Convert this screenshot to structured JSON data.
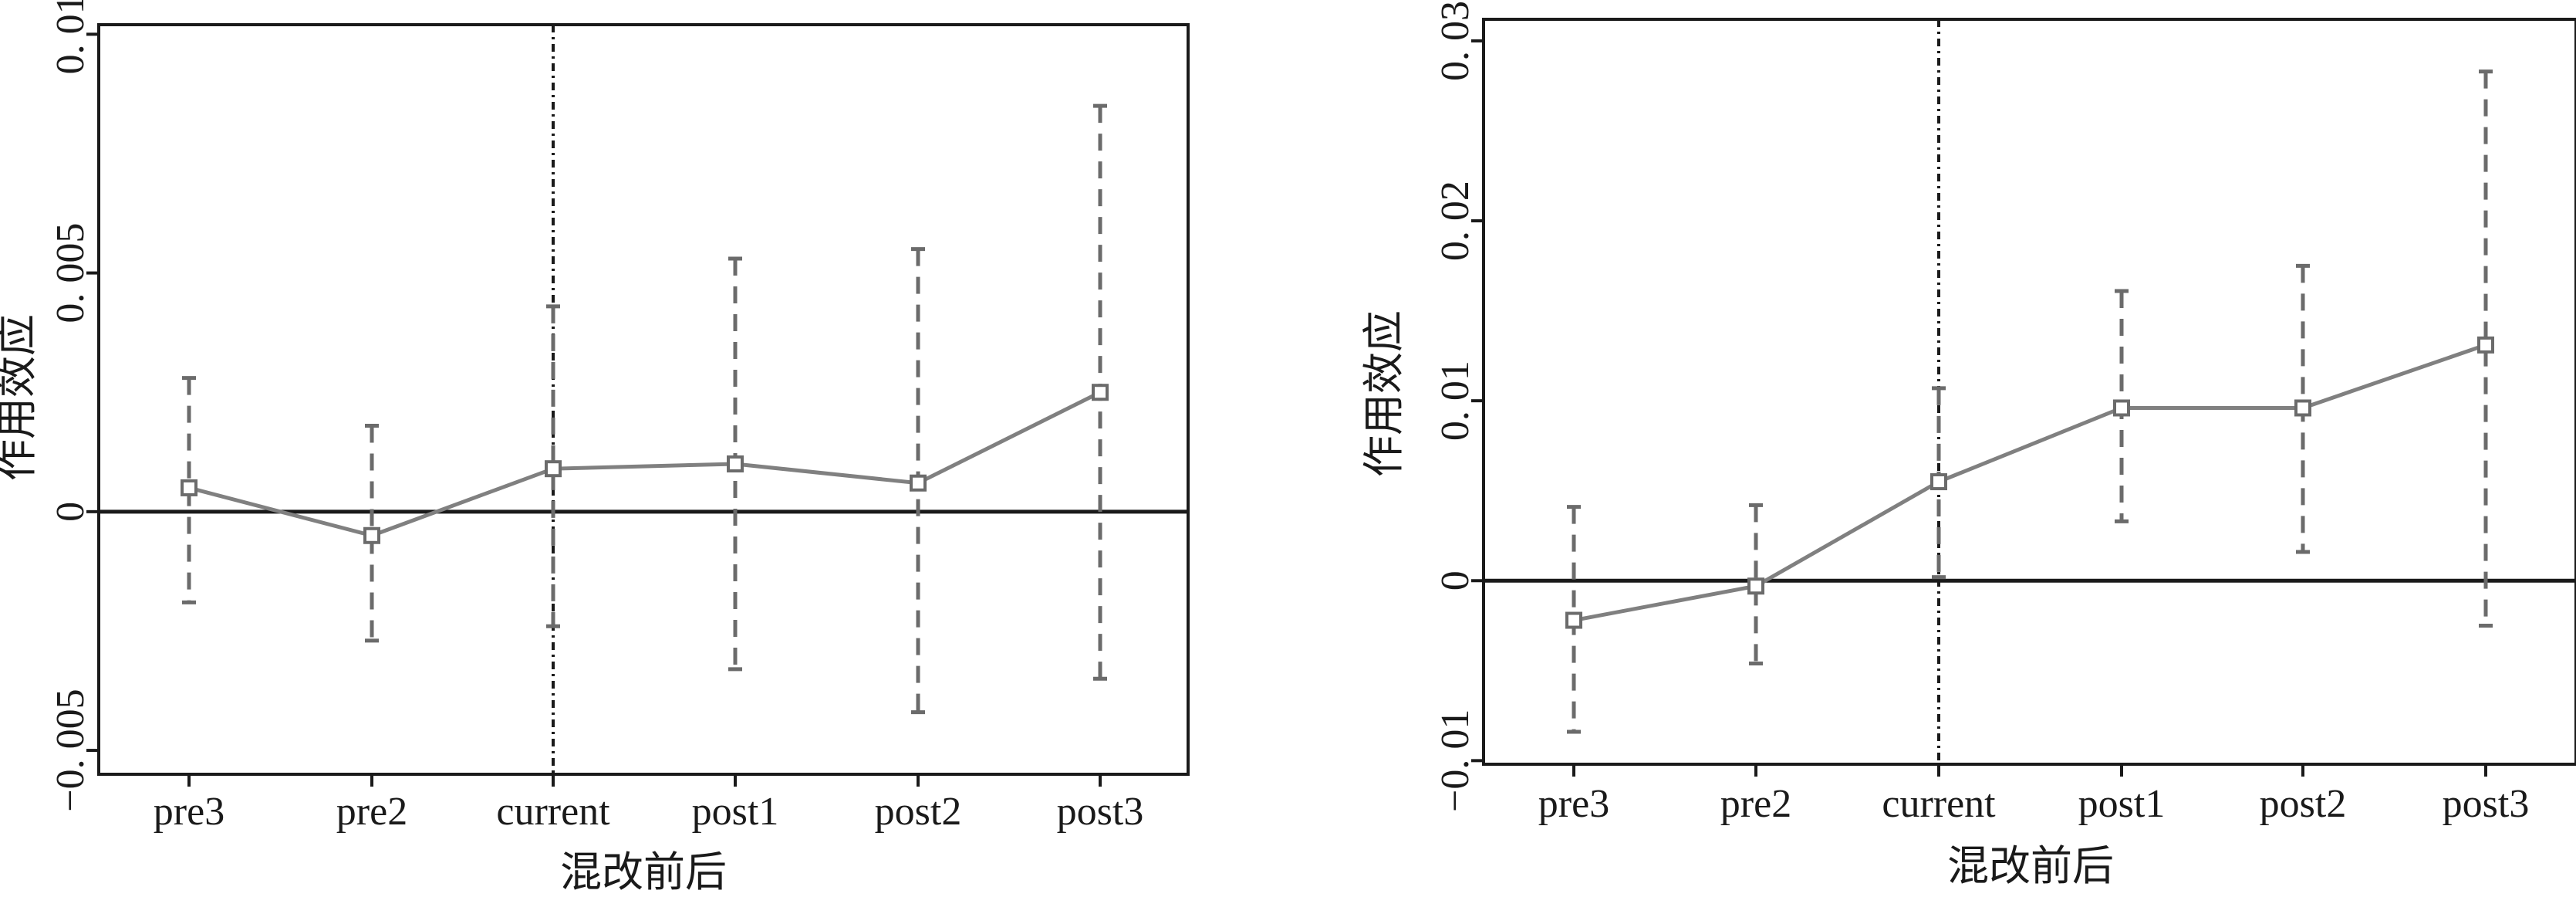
{
  "chart_data": [
    {
      "type": "line",
      "title": "",
      "xlabel": "混改前后",
      "ylabel": "作用效应",
      "categories": [
        "pre3",
        "pre2",
        "current",
        "post1",
        "post2",
        "post3"
      ],
      "ylim": [
        -0.0055,
        0.0102
      ],
      "yticks": [
        -0.005,
        0,
        0.005,
        0.01
      ],
      "ytick_labels": [
        "−0. 005",
        "0",
        "0. 005",
        "0. 01"
      ],
      "reference_line_y": 0,
      "vertical_marker_category": "current",
      "grid": false,
      "series": [
        {
          "values": [
            0.0005,
            -0.0005,
            0.0009,
            0.001,
            0.0006,
            0.0025
          ],
          "ci_low": [
            -0.0019,
            -0.0027,
            -0.0024,
            -0.0033,
            -0.0042,
            -0.0035
          ],
          "ci_high": [
            0.0028,
            0.0018,
            0.0043,
            0.0053,
            0.0055,
            0.0085
          ]
        }
      ]
    },
    {
      "type": "line",
      "title": "",
      "xlabel": "混改前后",
      "ylabel": "作用效应",
      "categories": [
        "pre3",
        "pre2",
        "current",
        "post1",
        "post2",
        "post3"
      ],
      "ylim": [
        -0.0102,
        0.0312
      ],
      "yticks": [
        -0.01,
        0,
        0.01,
        0.02,
        0.03
      ],
      "ytick_labels": [
        "−0. 01",
        "0",
        "0. 01",
        "0. 02",
        "0. 03"
      ],
      "reference_line_y": 0,
      "vertical_marker_category": "current",
      "grid": false,
      "series": [
        {
          "values": [
            -0.0022,
            -0.0003,
            0.0055,
            0.0096,
            0.0096,
            0.0131
          ],
          "ci_low": [
            -0.0084,
            -0.0046,
            0.0002,
            0.0033,
            0.0016,
            -0.0025
          ],
          "ci_high": [
            0.0041,
            0.0042,
            0.0107,
            0.0161,
            0.0175,
            0.0283
          ]
        }
      ]
    }
  ]
}
